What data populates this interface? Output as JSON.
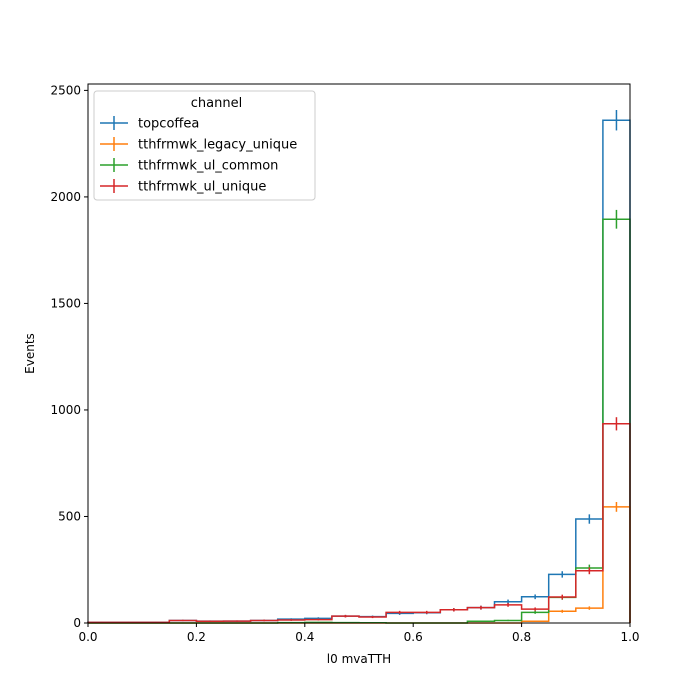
{
  "chart_data": {
    "type": "histogram-step",
    "xlabel": "l0 mvaTTH",
    "ylabel": "Events",
    "xlim": [
      0.0,
      1.0
    ],
    "ylim": [
      0,
      2530
    ],
    "xticks": [
      0.0,
      0.2,
      0.4,
      0.6,
      0.8,
      1.0
    ],
    "xtick_labels": [
      "0.0",
      "0.2",
      "0.4",
      "0.6",
      "0.8",
      "1.0"
    ],
    "yticks": [
      0,
      500,
      1000,
      1500,
      2000,
      2500
    ],
    "ytick_labels": [
      "0",
      "500",
      "1000",
      "1500",
      "2000",
      "2500"
    ],
    "grid": false,
    "legend": {
      "title": "channel",
      "placement": "top-left"
    },
    "bin_edges": [
      0.0,
      0.05,
      0.1,
      0.15,
      0.2,
      0.25,
      0.3,
      0.35,
      0.4,
      0.45,
      0.5,
      0.55,
      0.6,
      0.65,
      0.7,
      0.75,
      0.8,
      0.85,
      0.9,
      0.95,
      1.0
    ],
    "series": [
      {
        "name": "topcoffea",
        "color": "#1f77b4",
        "values": [
          3,
          3,
          3,
          12,
          9,
          9,
          12,
          18,
          22,
          32,
          30,
          45,
          48,
          62,
          72,
          100,
          123,
          228,
          488,
          2360
        ],
        "errors": [
          2,
          2,
          2,
          3,
          3,
          3,
          4,
          4,
          5,
          6,
          5,
          7,
          7,
          8,
          9,
          10,
          11,
          15,
          22,
          48
        ]
      },
      {
        "name": "tthfrmwk_legacy_unique",
        "color": "#ff7f0e",
        "values": [
          0,
          0,
          0,
          0,
          0,
          0,
          0,
          0,
          0,
          0,
          0,
          0,
          0,
          0,
          0,
          0,
          8,
          55,
          70,
          545
        ],
        "errors": [
          0,
          0,
          0,
          0,
          0,
          0,
          0,
          0,
          0,
          0,
          0,
          0,
          0,
          0,
          0,
          0,
          3,
          7,
          8,
          23
        ]
      },
      {
        "name": "tthfrmwk_ul_common",
        "color": "#2ca02c",
        "values": [
          0,
          0,
          0,
          0,
          0,
          0,
          0,
          2,
          3,
          2,
          1,
          0,
          0,
          0,
          8,
          12,
          50,
          120,
          258,
          1895
        ],
        "errors": [
          0,
          0,
          0,
          1,
          1,
          1,
          1,
          1,
          2,
          1,
          1,
          0,
          0,
          0,
          3,
          3,
          7,
          11,
          16,
          44
        ]
      },
      {
        "name": "tthfrmwk_ul_unique",
        "color": "#d62728",
        "values": [
          3,
          3,
          3,
          12,
          8,
          9,
          12,
          14,
          16,
          32,
          28,
          50,
          50,
          62,
          72,
          85,
          65,
          122,
          245,
          935
        ],
        "errors": [
          2,
          2,
          2,
          3,
          3,
          3,
          4,
          4,
          4,
          6,
          5,
          7,
          7,
          8,
          9,
          9,
          8,
          11,
          16,
          31
        ]
      }
    ]
  }
}
